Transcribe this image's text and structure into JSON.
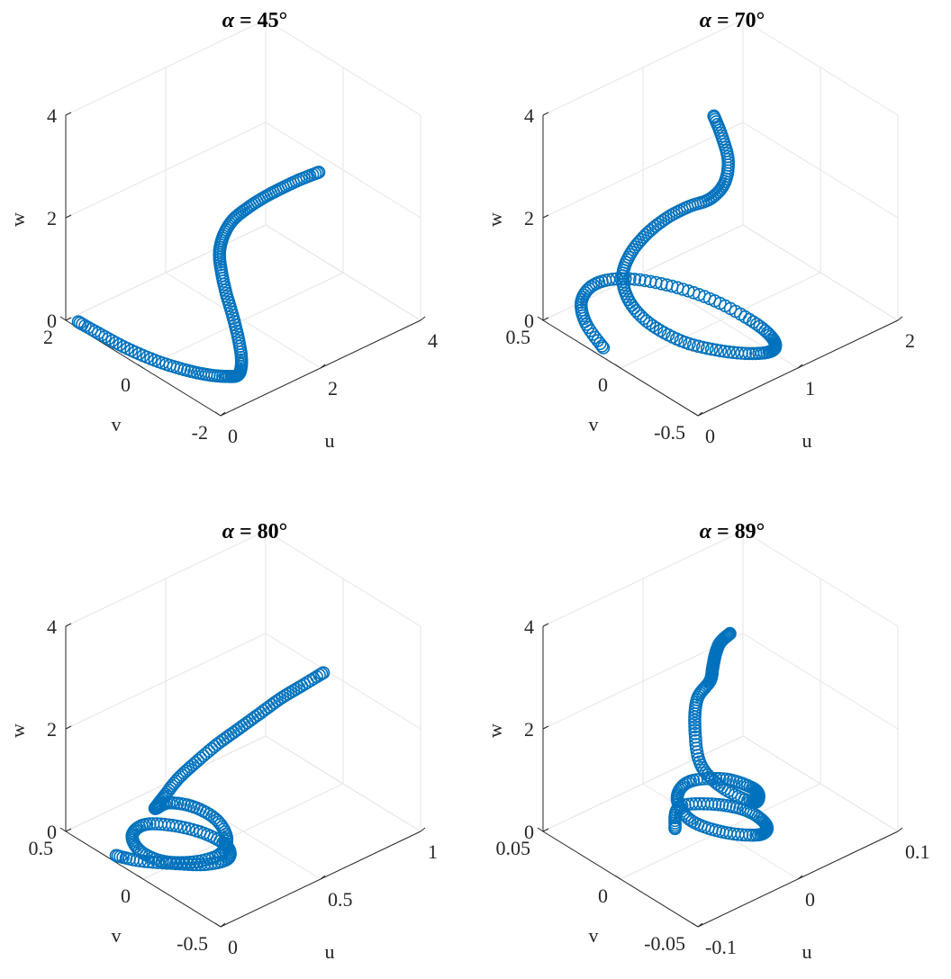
{
  "figure": {
    "marker_color": "#0072BD",
    "marker": "circle"
  },
  "chart_data": [
    {
      "type": "scatter",
      "projection": "3d",
      "title": "α = 45°",
      "title_parts": {
        "symbol": "α",
        "rest": " = 45°"
      },
      "xlabel": "u",
      "ylabel": "v",
      "zlabel": "w",
      "xlim": [
        0,
        4
      ],
      "ylim": [
        -2,
        2
      ],
      "zlim": [
        0,
        4
      ],
      "xticks": [
        "0",
        "2",
        "4"
      ],
      "yticks": [
        "-2",
        "0",
        "2"
      ],
      "zticks": [
        "0",
        "2",
        "4"
      ],
      "grid": true,
      "path_u": [
        0.02,
        0.06,
        0.14,
        0.26,
        0.42,
        0.58,
        0.74,
        0.86,
        0.96,
        1.02,
        1.06,
        1.08,
        1.1,
        1.14,
        1.22,
        1.36,
        1.56,
        1.82,
        2.1,
        2.4,
        2.7
      ],
      "path_v": [
        1.7,
        1.2,
        0.6,
        0.0,
        -0.5,
        -0.9,
        -1.2,
        -1.35,
        -1.3,
        -1.15,
        -0.95,
        -0.75,
        -0.6,
        -0.5,
        -0.5,
        -0.55,
        -0.65,
        -0.75,
        -0.85,
        -0.95,
        -1.05
      ],
      "path_w": [
        0.1,
        0.08,
        0.04,
        0.02,
        0.01,
        0.02,
        0.05,
        0.1,
        0.3,
        0.6,
        0.95,
        1.3,
        1.65,
        1.95,
        2.25,
        2.5,
        2.68,
        2.82,
        2.92,
        3.0,
        3.05
      ],
      "n_points": 150
    },
    {
      "type": "scatter",
      "projection": "3d",
      "title": "α = 70°",
      "title_parts": {
        "symbol": "α",
        "rest": " = 70°"
      },
      "xlabel": "u",
      "ylabel": "v",
      "zlabel": "w",
      "xlim": [
        0,
        2
      ],
      "ylim": [
        -0.5,
        0.5
      ],
      "zlim": [
        0,
        4
      ],
      "xticks": [
        "0",
        "1",
        "2"
      ],
      "yticks": [
        "-0.5",
        "0",
        "0.5"
      ],
      "zticks": [
        "0",
        "2",
        "4"
      ],
      "grid": true,
      "path_u": [
        0.06,
        0.12,
        0.2,
        0.34,
        0.52,
        0.72,
        0.9,
        1.02,
        1.06,
        1.0,
        0.86,
        0.68,
        0.5,
        0.36,
        0.28,
        0.3,
        0.4,
        0.56,
        0.74,
        0.9,
        1.02,
        1.1,
        1.14,
        1.14,
        1.12
      ],
      "path_v": [
        0.15,
        0.3,
        0.38,
        0.38,
        0.3,
        0.15,
        -0.02,
        -0.2,
        -0.3,
        -0.34,
        -0.3,
        -0.2,
        -0.08,
        0.04,
        0.12,
        0.18,
        0.2,
        0.2,
        0.18,
        0.14,
        0.08,
        0.04,
        0.04,
        0.08,
        0.12
      ],
      "path_w": [
        0.06,
        0.2,
        0.42,
        0.62,
        0.7,
        0.66,
        0.52,
        0.32,
        0.14,
        0.05,
        0.04,
        0.08,
        0.2,
        0.45,
        0.8,
        1.15,
        1.45,
        1.7,
        1.9,
        2.05,
        2.2,
        2.5,
        2.9,
        3.3,
        3.65
      ],
      "n_points": 200
    },
    {
      "type": "scatter",
      "projection": "3d",
      "title": "α = 80°",
      "title_parts": {
        "symbol": "α",
        "rest": " = 80°"
      },
      "xlabel": "u",
      "ylabel": "v",
      "zlabel": "w",
      "xlim": [
        0,
        1
      ],
      "ylim": [
        -0.5,
        0.5
      ],
      "zlim": [
        0,
        4
      ],
      "xticks": [
        "0",
        "0.5",
        "1"
      ],
      "yticks": [
        "-0.5",
        "0",
        "0.5"
      ],
      "zticks": [
        "0",
        "2",
        "4"
      ],
      "grid": true,
      "path_u": [
        0.02,
        0.06,
        0.14,
        0.22,
        0.3,
        0.34,
        0.32,
        0.26,
        0.18,
        0.1,
        0.06,
        0.08,
        0.16,
        0.26,
        0.34,
        0.38,
        0.36,
        0.3,
        0.22,
        0.16,
        0.14,
        0.16,
        0.2,
        0.26,
        0.32,
        0.38,
        0.44,
        0.5,
        0.56
      ],
      "path_v": [
        0.2,
        0.1,
        -0.02,
        -0.12,
        -0.16,
        -0.1,
        0.02,
        0.14,
        0.22,
        0.2,
        0.1,
        -0.02,
        -0.12,
        -0.16,
        -0.1,
        0.02,
        0.14,
        0.22,
        0.2,
        0.12,
        0.04,
        -0.02,
        -0.08,
        -0.14,
        -0.2,
        -0.26,
        -0.32,
        -0.38,
        -0.44
      ],
      "path_w": [
        0.05,
        0.06,
        0.08,
        0.1,
        0.14,
        0.2,
        0.26,
        0.3,
        0.32,
        0.3,
        0.26,
        0.24,
        0.26,
        0.3,
        0.36,
        0.42,
        0.48,
        0.52,
        0.6,
        0.9,
        1.3,
        1.7,
        2.05,
        2.4,
        2.7,
        3.0,
        3.3,
        3.55,
        3.8
      ],
      "n_points": 220
    },
    {
      "type": "scatter",
      "projection": "3d",
      "title": "α = 89°",
      "title_parts": {
        "symbol": "α",
        "rest": " = 89°"
      },
      "xlabel": "u",
      "ylabel": "v",
      "zlabel": "w",
      "xlim": [
        -0.1,
        0.1
      ],
      "ylim": [
        -0.05,
        0.05
      ],
      "zlim": [
        0,
        4
      ],
      "xticks": [
        "-0.1",
        "0",
        "0.1"
      ],
      "yticks": [
        "-0.05",
        "0",
        "0.05"
      ],
      "zticks": [
        "0",
        "2",
        "4"
      ],
      "grid": true,
      "path_u": [
        -0.03,
        -0.01,
        0.01,
        0.02,
        0.015,
        0.0,
        -0.02,
        -0.03,
        -0.02,
        0.0,
        0.02,
        0.025,
        0.015,
        0.0,
        -0.015,
        -0.02,
        -0.01,
        0.0,
        0.005,
        0.0,
        -0.005,
        -0.008,
        -0.006
      ],
      "path_v": [
        0.01,
        0.02,
        0.01,
        -0.005,
        -0.02,
        -0.025,
        -0.015,
        0.0,
        0.015,
        0.02,
        0.01,
        -0.005,
        -0.015,
        -0.02,
        -0.01,
        0.0,
        0.01,
        0.015,
        0.01,
        0.005,
        0.0,
        -0.005,
        -0.01
      ],
      "path_w": [
        0.15,
        0.2,
        0.25,
        0.3,
        0.35,
        0.4,
        0.45,
        0.5,
        0.55,
        0.6,
        0.65,
        0.7,
        0.8,
        0.95,
        1.2,
        1.5,
        1.9,
        2.3,
        2.7,
        3.1,
        3.5,
        3.85,
        4.1
      ],
      "n_points": 220
    }
  ]
}
